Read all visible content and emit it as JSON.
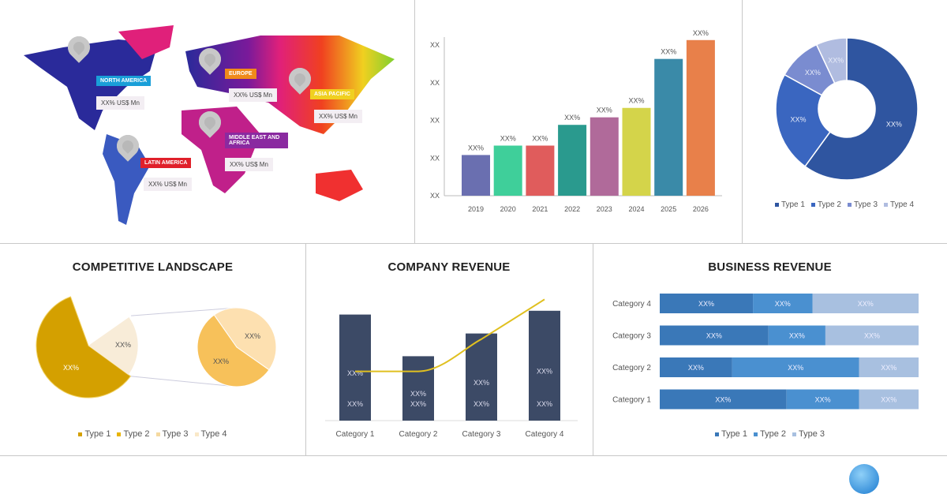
{
  "map": {
    "regions": [
      {
        "label": "NORTH AMERICA",
        "value": "XX% US$ Mn",
        "color": "#1a9fd8"
      },
      {
        "label": "EUROPE",
        "value": "XX% US$ Mn",
        "color": "#f08a1a"
      },
      {
        "label": "ASIA PACIFIC",
        "value": "XX% US$ Mn",
        "color": "#f0d020"
      },
      {
        "label": "MIDDLE EAST AND AFRICA",
        "value": "XX% US$ Mn",
        "color": "#8a2aa0"
      },
      {
        "label": "LATIN AMERICA",
        "value": "XX% US$ Mn",
        "color": "#e0202a"
      }
    ]
  },
  "chart_data": [
    {
      "type": "bar",
      "categories": [
        "2019",
        "2020",
        "2021",
        "2022",
        "2023",
        "2024",
        "2025",
        "2026"
      ],
      "values": [
        1.08,
        1.33,
        1.33,
        1.88,
        2.08,
        2.33,
        3.63,
        4.13
      ],
      "data_labels": [
        "XX%",
        "XX%",
        "XX%",
        "XX%",
        "XX%",
        "XX%",
        "XX%",
        "XX%"
      ],
      "ytick_labels": [
        "XX",
        "XX",
        "XX",
        "XX",
        "XX"
      ],
      "ylim": [
        0,
        4.2
      ],
      "colors": [
        "#6a6fb0",
        "#3fcf9a",
        "#e05c5c",
        "#2a9a8e",
        "#b06a9a",
        "#d4d44a",
        "#3a8aa8",
        "#e8804a"
      ]
    },
    {
      "type": "pie",
      "donut": true,
      "categories": [
        "Type 1",
        "Type 2",
        "Type 3",
        "Type 4"
      ],
      "values": [
        60,
        23,
        10,
        7
      ],
      "data_labels": [
        "XX%",
        "XX%",
        "XX%",
        "XX%"
      ],
      "colors": [
        "#2f55a0",
        "#3a66c0",
        "#7a8cd0",
        "#b0bce0"
      ],
      "legend": "bottom"
    },
    {
      "type": "pie",
      "title": "COMPETITIVE LANDSCAPE",
      "categories": [
        "Type 1",
        "Type 2",
        "Type 3",
        "Type 4"
      ],
      "main_values": [
        60,
        18,
        22
      ],
      "sub_values": [
        50,
        50
      ],
      "data_labels": [
        "XX%",
        "XX%",
        "XX%",
        "XX%",
        "XX%"
      ],
      "colors": [
        "#d4a000",
        "#e8b400",
        "#f8ecd8",
        "#fde0b0",
        "#f7c15a"
      ],
      "legend": "bottom",
      "legend_colors": [
        "#d4a000",
        "#e8b400",
        "#f5d9a0",
        "#f9e8c8"
      ]
    },
    {
      "type": "bar",
      "title": "COMPANY REVENUE",
      "categories": [
        "Category 1",
        "Category 2",
        "Category 3",
        "Category 4"
      ],
      "values": [
        5.6,
        3.4,
        4.6,
        5.8
      ],
      "line_values": [
        2.6,
        2.6,
        4.3,
        6.4
      ],
      "bar_labels_mid": [
        "XX%",
        "XX%",
        "XX%",
        "XX%"
      ],
      "bar_labels_top": [
        "XX%",
        "XX%",
        "XX%",
        "XX%"
      ],
      "bar_color": "#3c4a66",
      "line_color": "#e0c020"
    },
    {
      "type": "bar",
      "orientation": "horizontal",
      "stacked": true,
      "title": "BUSINESS REVENUE",
      "categories": [
        "Category 4",
        "Category 3",
        "Category 2",
        "Category 1"
      ],
      "series": [
        {
          "name": "Type 1",
          "values": [
            36,
            42,
            28,
            49
          ],
          "color": "#3a78b8"
        },
        {
          "name": "Type 2",
          "values": [
            23,
            22,
            49,
            28
          ],
          "color": "#4a90d0"
        },
        {
          "name": "Type 3",
          "values": [
            41,
            36,
            23,
            23
          ],
          "color": "#a8c0e0"
        }
      ],
      "data_label": "XX%",
      "legend": "bottom"
    }
  ]
}
